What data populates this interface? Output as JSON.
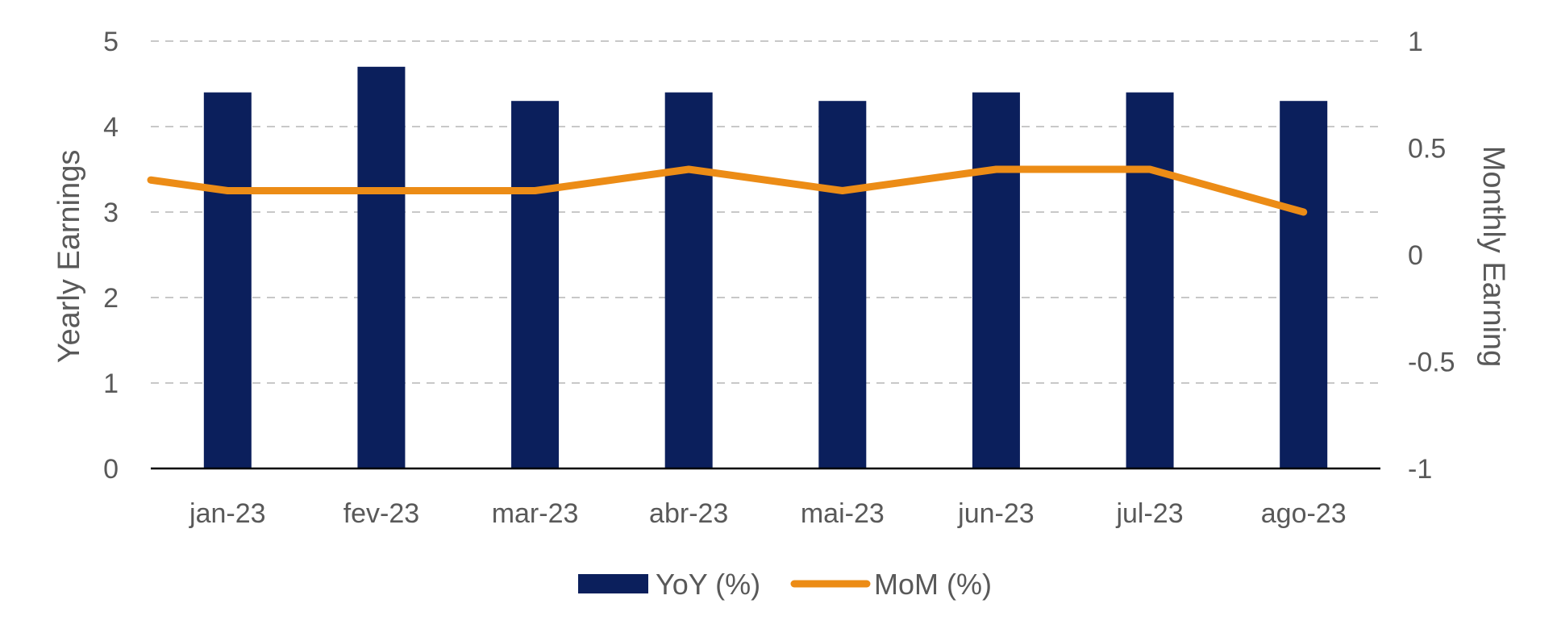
{
  "chart_data": {
    "type": "bar",
    "categories": [
      "jan-23",
      "fev-23",
      "mar-23",
      "abr-23",
      "mai-23",
      "jun-23",
      "jul-23",
      "ago-23"
    ],
    "series": [
      {
        "name": "YoY (%)",
        "type": "bar",
        "axis": "left",
        "color": "#0b1f5c",
        "values": [
          4.4,
          4.7,
          4.3,
          4.4,
          4.3,
          4.4,
          4.4,
          4.3
        ]
      },
      {
        "name": "MoM (%)",
        "type": "line",
        "axis": "right",
        "color": "#ec8c16",
        "start_value": 0.35,
        "values": [
          0.3,
          0.3,
          0.3,
          0.4,
          0.3,
          0.4,
          0.4,
          0.2
        ]
      }
    ],
    "ylabel": "Yearly Earnings",
    "y2label": "Monthly Earning",
    "ylim": [
      0,
      5
    ],
    "y2lim": [
      -1,
      1
    ],
    "yticks": [
      "0",
      "1",
      "2",
      "3",
      "4",
      "5"
    ],
    "y2ticks": [
      "-1",
      "-0.5",
      "0",
      "0.5",
      "1"
    ],
    "grid": true,
    "legend_position": "bottom"
  }
}
